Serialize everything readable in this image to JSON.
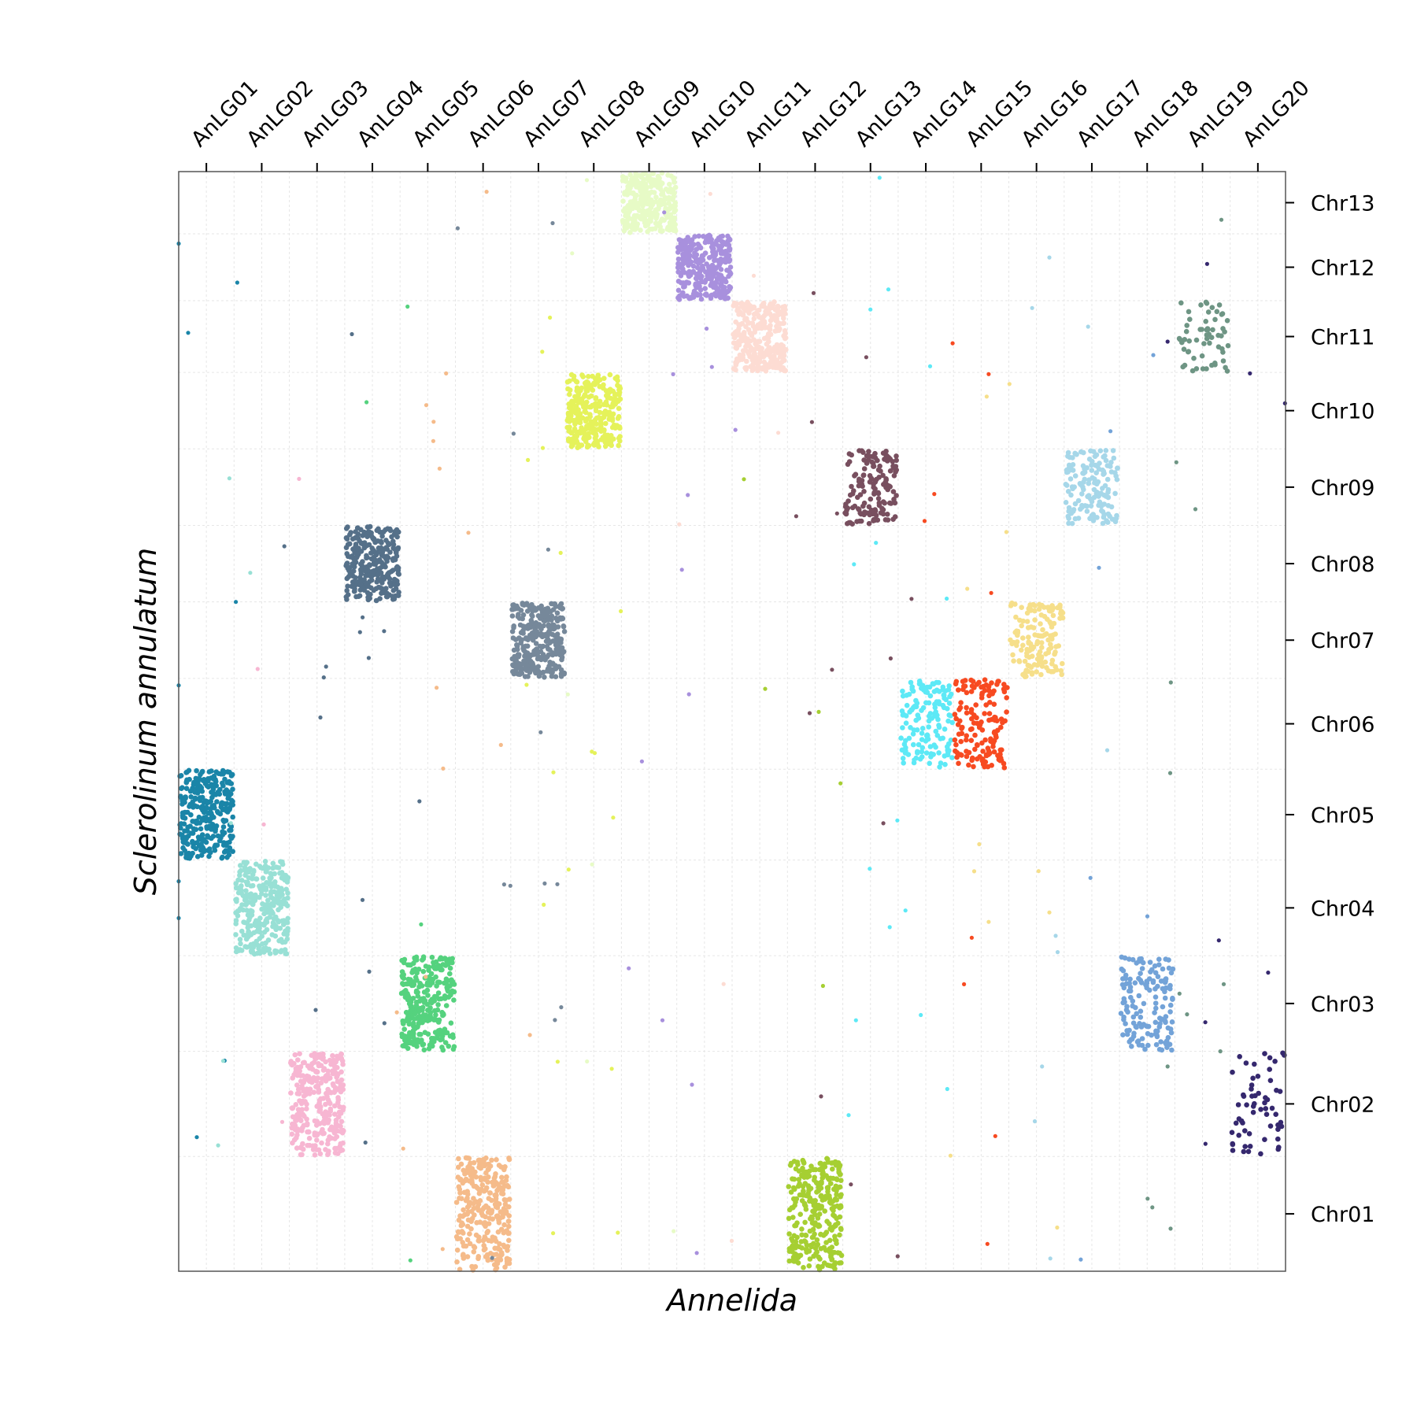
{
  "chart_data": {
    "type": "scatter",
    "title": "",
    "xlabel": "Annelida",
    "ylabel": "Sclerolinum annulatum",
    "x_categories": [
      "AnLG01",
      "AnLG02",
      "AnLG03",
      "AnLG04",
      "AnLG05",
      "AnLG06",
      "AnLG07",
      "AnLG08",
      "AnLG09",
      "AnLG10",
      "AnLG11",
      "AnLG12",
      "AnLG13",
      "AnLG14",
      "AnLG15",
      "AnLG16",
      "AnLG17",
      "AnLG18",
      "AnLG19",
      "AnLG20"
    ],
    "y_categories": [
      "Chr01",
      "Chr02",
      "Chr03",
      "Chr04",
      "Chr05",
      "Chr06",
      "Chr07",
      "Chr08",
      "Chr09",
      "Chr10",
      "Chr11",
      "Chr12",
      "Chr13"
    ],
    "y_section_sizes": [
      1.2,
      1.1,
      1.0,
      1.0,
      0.95,
      0.95,
      0.8,
      0.8,
      0.8,
      0.8,
      0.75,
      0.7,
      0.65
    ],
    "x_axis_position": "top",
    "y_axis_position": "right",
    "grid": true,
    "legend": "none",
    "colors": {
      "AnLG01": "#1a85a8",
      "AnLG02": "#98e0d5",
      "AnLG03": "#f7b6d2",
      "AnLG04": "#557089",
      "AnLG05": "#55d27e",
      "AnLG06": "#f5bb8a",
      "AnLG07": "#76889a",
      "AnLG08": "#e5f25a",
      "AnLG09": "#e7fbc6",
      "AnLG10": "#a890dd",
      "AnLG11": "#fddcd3",
      "AnLG12": "#a6cf32",
      "AnLG13": "#784f5f",
      "AnLG14": "#5de9f6",
      "AnLG15": "#f74a21",
      "AnLG16": "#f6df8a",
      "AnLG17": "#a6d7e9",
      "AnLG18": "#73a3d8",
      "AnLG19": "#6e9584",
      "AnLG20": "#35286e"
    },
    "blocks": [
      {
        "x": "AnLG01",
        "y": "Chr05",
        "density": "high"
      },
      {
        "x": "AnLG02",
        "y": "Chr04",
        "density": "high"
      },
      {
        "x": "AnLG03",
        "y": "Chr02",
        "density": "high"
      },
      {
        "x": "AnLG04",
        "y": "Chr08",
        "density": "high"
      },
      {
        "x": "AnLG05",
        "y": "Chr03",
        "density": "high"
      },
      {
        "x": "AnLG06",
        "y": "Chr01",
        "density": "high"
      },
      {
        "x": "AnLG07",
        "y": "Chr07",
        "density": "high"
      },
      {
        "x": "AnLG08",
        "y": "Chr10",
        "density": "high"
      },
      {
        "x": "AnLG09",
        "y": "Chr13",
        "density": "high"
      },
      {
        "x": "AnLG10",
        "y": "Chr12",
        "density": "high"
      },
      {
        "x": "AnLG11",
        "y": "Chr11",
        "density": "high"
      },
      {
        "x": "AnLG12",
        "y": "Chr01",
        "density": "high"
      },
      {
        "x": "AnLG13",
        "y": "Chr09",
        "density": "medium"
      },
      {
        "x": "AnLG14",
        "y": "Chr06",
        "density": "medium"
      },
      {
        "x": "AnLG15",
        "y": "Chr06",
        "density": "medium"
      },
      {
        "x": "AnLG16",
        "y": "Chr07",
        "density": "medium"
      },
      {
        "x": "AnLG17",
        "y": "Chr09",
        "density": "medium"
      },
      {
        "x": "AnLG18",
        "y": "Chr03",
        "density": "medium"
      },
      {
        "x": "AnLG19",
        "y": "Chr11",
        "density": "low"
      },
      {
        "x": "AnLG20",
        "y": "Chr02",
        "density": "low"
      }
    ]
  }
}
